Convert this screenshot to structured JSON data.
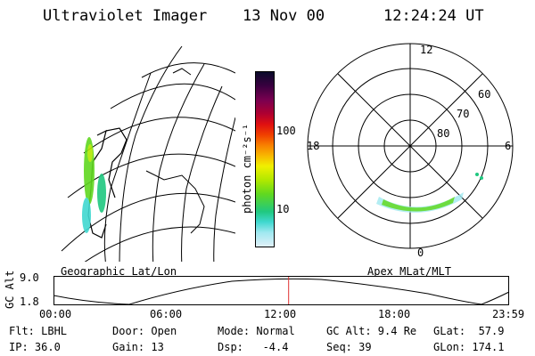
{
  "header": {
    "title": "Ultraviolet Imager",
    "date": "13 Nov 00",
    "time": "12:24:24 UT"
  },
  "geo_panel": {
    "label": "Geographic Lat/Lon"
  },
  "colorbar": {
    "unit_label": "photon cm⁻²s⁻¹",
    "ticks": [
      "100",
      "10"
    ],
    "colors": [
      "#0a0a2a",
      "#3a0040",
      "#7a0050",
      "#b00030",
      "#e01010",
      "#f04000",
      "#f88000",
      "#f8b800",
      "#f0f000",
      "#b0e800",
      "#60d820",
      "#20c880",
      "#40d8d0",
      "#a0e8f0",
      "#e0f0f8"
    ]
  },
  "polar_panel": {
    "label": "Apex MLat/MLT",
    "mlt_labels": {
      "top": "12",
      "left": "18",
      "right": "6",
      "bottom": "0"
    },
    "lat_labels": [
      "60",
      "70",
      "80"
    ]
  },
  "timeline": {
    "y_axis_label": "GC Alt",
    "y_ticks": [
      "9.0",
      "1.8"
    ],
    "x_ticks": [
      "00:00",
      "06:00",
      "12:00",
      "18:00",
      "23:59"
    ],
    "current_time_fraction": 0.517,
    "marker_color": "#e03030"
  },
  "info": {
    "row1": {
      "flt": "Flt: LBHL",
      "door": "Door: Open",
      "mode": "Mode: Normal",
      "gcalt": "GC Alt: 9.4 Re",
      "glat": "GLat:  57.9"
    },
    "row2": {
      "ip": "IP: 36.0",
      "gain": "Gain: 13",
      "dsp": "Dsp:   -4.4",
      "seq": "Seq: 39",
      "glon": "GLon: 174.1"
    }
  }
}
